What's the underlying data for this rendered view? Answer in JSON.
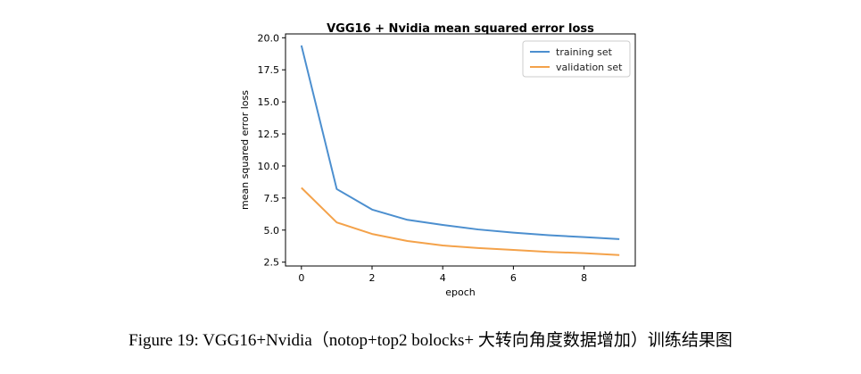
{
  "chart_data": {
    "type": "line",
    "title": "VGG16 + Nvidia mean squared error loss",
    "xlabel": "epoch",
    "ylabel": "mean squared error loss",
    "xlim": [
      -0.45,
      9.45
    ],
    "ylim": [
      2.2,
      20.3
    ],
    "xticks": [
      0,
      2,
      4,
      6,
      8
    ],
    "yticks": [
      2.5,
      5.0,
      7.5,
      10.0,
      12.5,
      15.0,
      17.5,
      20.0
    ],
    "grid": false,
    "legend_position": "top-right",
    "x": [
      0,
      1,
      2,
      3,
      4,
      5,
      6,
      7,
      8,
      9
    ],
    "series": [
      {
        "name": "training set",
        "color": "#4c8fcf",
        "values": [
          19.4,
          8.2,
          6.6,
          5.8,
          5.4,
          5.05,
          4.8,
          4.6,
          4.45,
          4.3
        ]
      },
      {
        "name": "validation set",
        "color": "#f4a24a",
        "values": [
          8.3,
          5.6,
          4.7,
          4.15,
          3.8,
          3.6,
          3.45,
          3.3,
          3.2,
          3.05
        ]
      }
    ]
  },
  "caption": "Figure 19: VGG16+Nvidia（notop+top2 bolocks+ 大转向角度数据增加）训练结果图"
}
